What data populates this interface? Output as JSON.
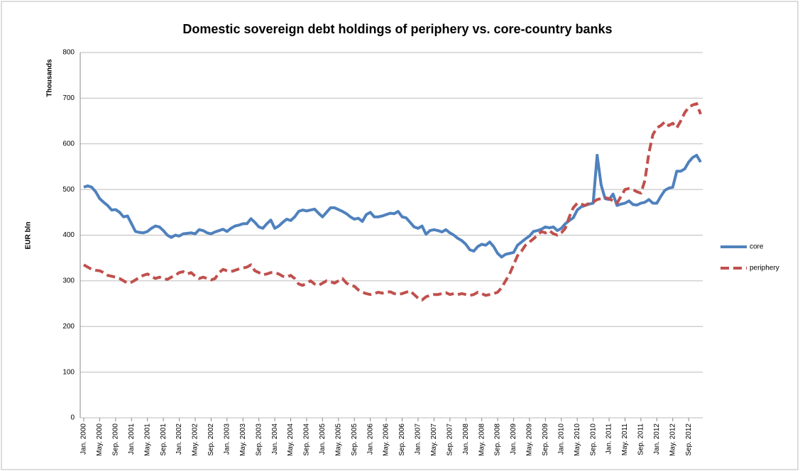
{
  "chart_data": {
    "type": "line",
    "title": "Domestic sovereign debt holdings of periphery vs. core-country banks",
    "ylabel": "EUR bln",
    "y_units_label": "Thousands",
    "categories": [
      "Jan. 2000",
      null,
      null,
      null,
      "May. 2000",
      null,
      null,
      null,
      "Sep. 2000",
      null,
      null,
      null,
      "Jan. 2001",
      null,
      null,
      null,
      "May. 2001",
      null,
      null,
      null,
      "Sep. 2001",
      null,
      null,
      null,
      "Jan. 2002",
      null,
      null,
      null,
      "May. 2002",
      null,
      null,
      null,
      "Sep. 2002",
      null,
      null,
      null,
      "Jan. 2003",
      null,
      null,
      null,
      "May. 2003",
      null,
      null,
      null,
      "Sep. 2003",
      null,
      null,
      null,
      "Jan. 2004",
      null,
      null,
      null,
      "May. 2004",
      null,
      null,
      null,
      "Sep. 2004",
      null,
      null,
      null,
      "Jan. 2005",
      null,
      null,
      null,
      "May. 2005",
      null,
      null,
      null,
      "Sep. 2005",
      null,
      null,
      null,
      "Jan. 2006",
      null,
      null,
      null,
      "May. 2006",
      null,
      null,
      null,
      "Sep. 2006",
      null,
      null,
      null,
      "Jan. 2007",
      null,
      null,
      null,
      "May. 2007",
      null,
      null,
      null,
      "Sep. 2007",
      null,
      null,
      null,
      "Jan. 2008",
      null,
      null,
      null,
      "May. 2008",
      null,
      null,
      null,
      "Sep. 2008",
      null,
      null,
      null,
      "Jan. 2009",
      null,
      null,
      null,
      "May. 2009",
      null,
      null,
      null,
      "Sep. 2009",
      null,
      null,
      null,
      "Jan. 2010",
      null,
      null,
      null,
      "May. 2010",
      null,
      null,
      null,
      "Sep. 2010",
      null,
      null,
      null,
      "Jan. 2011",
      null,
      null,
      null,
      "May. 2011",
      null,
      null,
      null,
      "Sep. 2011",
      null,
      null,
      null,
      "Jan. 2012",
      null,
      null,
      null,
      "May. 2012",
      null,
      null,
      null,
      "Sep. 2012",
      null,
      null,
      null
    ],
    "series": [
      {
        "name": "core",
        "color": "#4f81bd",
        "dashed": false,
        "values": [
          505,
          508,
          505,
          495,
          480,
          472,
          465,
          455,
          456,
          450,
          440,
          442,
          425,
          408,
          406,
          405,
          408,
          415,
          420,
          418,
          410,
          400,
          395,
          400,
          398,
          403,
          404,
          405,
          403,
          412,
          410,
          405,
          403,
          407,
          410,
          413,
          408,
          415,
          420,
          422,
          425,
          425,
          436,
          428,
          418,
          415,
          425,
          433,
          415,
          420,
          428,
          435,
          432,
          440,
          452,
          455,
          453,
          455,
          457,
          448,
          440,
          450,
          460,
          460,
          456,
          452,
          447,
          440,
          435,
          437,
          430,
          445,
          450,
          440,
          440,
          442,
          445,
          448,
          447,
          452,
          440,
          438,
          428,
          418,
          415,
          420,
          402,
          410,
          412,
          410,
          407,
          412,
          405,
          400,
          393,
          388,
          380,
          368,
          365,
          375,
          380,
          378,
          385,
          375,
          360,
          352,
          358,
          360,
          362,
          378,
          385,
          392,
          398,
          408,
          410,
          413,
          418,
          416,
          418,
          410,
          415,
          425,
          432,
          438,
          455,
          462,
          465,
          468,
          470,
          575,
          510,
          480,
          478,
          490,
          465,
          468,
          470,
          475,
          467,
          466,
          470,
          472,
          478,
          470,
          470,
          485,
          498,
          503,
          505,
          540,
          540,
          545,
          560,
          570,
          575,
          560
        ]
      },
      {
        "name": "periphery",
        "color": "#c0504d",
        "dashed": true,
        "values": [
          335,
          330,
          325,
          323,
          322,
          318,
          312,
          310,
          308,
          305,
          300,
          295,
          297,
          302,
          308,
          312,
          315,
          310,
          305,
          308,
          305,
          303,
          308,
          312,
          318,
          320,
          315,
          318,
          310,
          305,
          308,
          305,
          302,
          305,
          318,
          325,
          322,
          320,
          323,
          326,
          328,
          330,
          335,
          322,
          318,
          313,
          315,
          318,
          318,
          315,
          310,
          308,
          312,
          305,
          293,
          290,
          295,
          300,
          293,
          290,
          295,
          300,
          298,
          295,
          300,
          305,
          295,
          290,
          288,
          280,
          275,
          272,
          270,
          272,
          275,
          273,
          275,
          276,
          272,
          270,
          272,
          275,
          278,
          270,
          262,
          258,
          265,
          268,
          270,
          270,
          272,
          274,
          270,
          272,
          270,
          272,
          270,
          268,
          270,
          275,
          272,
          268,
          270,
          272,
          275,
          285,
          300,
          315,
          335,
          355,
          365,
          378,
          385,
          392,
          400,
          408,
          405,
          410,
          403,
          400,
          405,
          415,
          440,
          460,
          470,
          468,
          465,
          470,
          472,
          478,
          480,
          482,
          480,
          475,
          470,
          485,
          500,
          502,
          500,
          495,
          492,
          520,
          580,
          620,
          635,
          640,
          648,
          640,
          645,
          635,
          650,
          668,
          680,
          685,
          688,
          665
        ]
      }
    ],
    "ylim": [
      0,
      800
    ],
    "yticks": [
      0,
      100,
      200,
      300,
      400,
      500,
      600,
      700,
      800
    ],
    "grid": true,
    "legend": "right"
  }
}
